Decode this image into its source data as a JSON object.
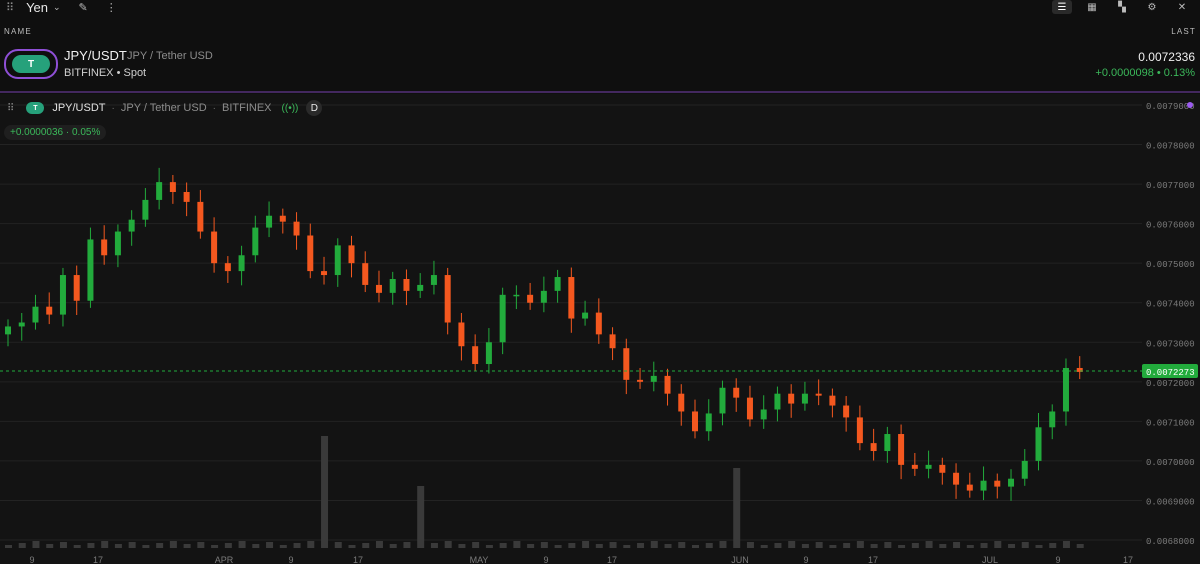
{
  "header": {
    "title": "Yen",
    "icons": [
      "drag-handle-icon",
      "chevron-down-icon",
      "pencil-icon",
      "more-vertical-icon"
    ],
    "view_icons": [
      "list-view-icon",
      "table-view-icon",
      "grid-view-icon",
      "settings-icon",
      "close-icon"
    ]
  },
  "columns": {
    "name": "NAME",
    "last": "LAST"
  },
  "row": {
    "symbol": "JPY/USDT",
    "description": "JPY / Tether USD",
    "exchange": "BITFINEX",
    "type": "Spot",
    "last": "0.0072336",
    "change": "+0.0000098",
    "change_pct": "0.13%"
  },
  "legend": {
    "symbol": "JPY/USDT",
    "description": "JPY / Tether USD",
    "exchange": "BITFINEX",
    "interval": "D",
    "change": "+0.0000036 · 0.05%"
  },
  "colors": {
    "up": "#22ab3c",
    "down": "#f4581f",
    "accent": "#9c5cf0",
    "tether": "#26a17b"
  },
  "chart_data": {
    "type": "candlestick",
    "y_ticks": [
      "0.0079000",
      "0.0078000",
      "0.0077000",
      "0.0076000",
      "0.0075000",
      "0.0074000",
      "0.0073000",
      "0.0072000",
      "0.0071000",
      "0.0070000",
      "0.0069000",
      "0.0068000"
    ],
    "x_ticks": [
      "9",
      "17",
      "APR",
      "9",
      "17",
      "MAY",
      "9",
      "17",
      "JUN",
      "9",
      "17",
      "JUL",
      "9",
      "17"
    ],
    "current_price": "0.0072273",
    "close": [
      0.00734,
      0.00735,
      0.00739,
      0.00737,
      0.00747,
      0.007405,
      0.00756,
      0.00752,
      0.00758,
      0.00761,
      0.00766,
      0.007705,
      0.00768,
      0.007655,
      0.00758,
      0.0075,
      0.00748,
      0.00752,
      0.00759,
      0.00762,
      0.007605,
      0.00757,
      0.00748,
      0.00747,
      0.007545,
      0.0075,
      0.007445,
      0.007425,
      0.00746,
      0.00743,
      0.007445,
      0.00747,
      0.00735,
      0.00729,
      0.007245,
      0.0073,
      0.00742,
      0.00742,
      0.0074,
      0.00743,
      0.007465,
      0.00736,
      0.007375,
      0.00732,
      0.007285,
      0.007205,
      0.0072,
      0.007215,
      0.00717,
      0.007125,
      0.007075,
      0.00712,
      0.007185,
      0.00716,
      0.007105,
      0.00713,
      0.00717,
      0.007145,
      0.00717,
      0.007165,
      0.00714,
      0.00711,
      0.007045,
      0.007025,
      0.007068,
      0.00699,
      0.00698,
      0.00699,
      0.00697,
      0.00694,
      0.006925,
      0.00695,
      0.006935,
      0.006955,
      0.007,
      0.007085,
      0.007125,
      0.007235,
      0.007225
    ]
  }
}
